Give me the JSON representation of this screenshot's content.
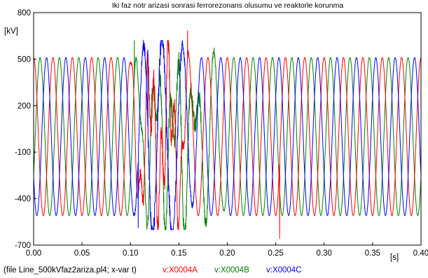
{
  "chart_data": {
    "type": "line",
    "title": "Iki faz notr arizasi sonrasi ferrorezonans olusumu ve reaktorle korunma",
    "ylabel": "[kV]",
    "xlabel": "[s]",
    "xlim": [
      0.0,
      0.4
    ],
    "ylim": [
      -700,
      800
    ],
    "x_ticks": [
      "0.00",
      "0.05",
      "0.10",
      "0.15",
      "0.20",
      "0.25",
      "0.30",
      "0.35",
      "0.40"
    ],
    "y_ticks": [
      "-700",
      "-400",
      "-100",
      "200",
      "500",
      "800"
    ],
    "grid": false,
    "legend_position": "bottom",
    "series": [
      {
        "name": "v:X0004A",
        "color": "#ff0000",
        "amplitude_kv": 510,
        "frequency_hz": 50,
        "phase_deg": 90,
        "disturbance": [
          0.098,
          0.165
        ],
        "peaks": [
          {
            "x": 0.159,
            "y": 685
          },
          {
            "x": 0.254,
            "y": -660
          }
        ]
      },
      {
        "name": "v:X0004B",
        "color": "#008000",
        "amplitude_kv": 510,
        "frequency_hz": 50,
        "phase_deg": -30,
        "disturbance": [
          0.098,
          0.2
        ],
        "peaks": [
          {
            "x": 0.104,
            "y": 620
          },
          {
            "x": 0.117,
            "y": -600
          }
        ]
      },
      {
        "name": "v:X0004C",
        "color": "#0000ff",
        "amplitude_kv": 510,
        "frequency_hz": 50,
        "phase_deg": 210,
        "disturbance": [
          0.1,
          0.17
        ],
        "peaks": [
          {
            "x": 0.118,
            "y": 560
          },
          {
            "x": 0.108,
            "y": -590
          }
        ]
      }
    ]
  },
  "footer": {
    "file_label": "(file Line_500kVfaz2ariza.pl4; x-var t)"
  }
}
